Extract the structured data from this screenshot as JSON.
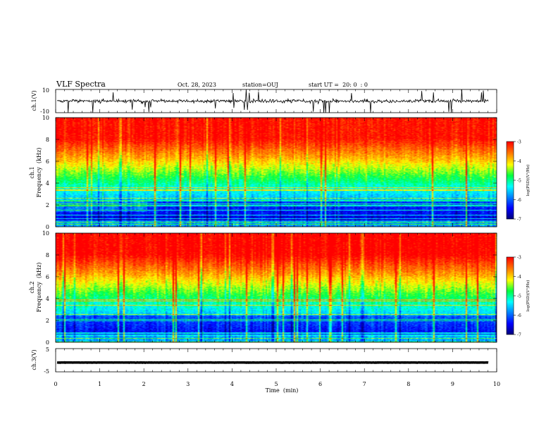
{
  "header": {
    "title": "VLF Spectra",
    "date": "Oct. 28, 2023",
    "station": "station=OUJ",
    "start": "start UT =  20: 0  : 0"
  },
  "colorbar": {
    "ticks": [
      "-3",
      "-4",
      "-5",
      "-6",
      "-7"
    ],
    "label": "log(PSD)(V²/Hz)",
    "range": [
      -7,
      -3
    ],
    "colors": [
      "#00007a",
      "#0000ff",
      "#0080ff",
      "#00ffff",
      "#00ff40",
      "#ffff00",
      "#ff8000",
      "#ff0000"
    ]
  },
  "chart_data": [
    {
      "type": "line",
      "name": "ch.1",
      "ylabel": "ch.1(V)",
      "ylim": [
        -10,
        10
      ],
      "yticks": [
        "10",
        "-10"
      ],
      "xlim": [
        0,
        10
      ],
      "baseline": 0.0,
      "noise_amplitude": 2.5
    },
    {
      "type": "heatmap",
      "name": "ch.1 spectrogram",
      "ylabel_line1": "ch.1",
      "ylabel_line2": "Frequency  (kHz)",
      "xlim": [
        0,
        10
      ],
      "ylim": [
        0,
        10
      ],
      "yticks": [
        "0",
        "2",
        "4",
        "6",
        "8",
        "10"
      ],
      "note": "power decreases from ~-3 above 8 kHz to ~-7 below 2 kHz"
    },
    {
      "type": "heatmap",
      "name": "ch.2 spectrogram",
      "ylabel_line1": "ch.2",
      "ylabel_line2": "Frequency  (kHz)",
      "xlim": [
        0,
        10
      ],
      "ylim": [
        0,
        10
      ],
      "yticks": [
        "0",
        "2",
        "4",
        "6",
        "8",
        "10"
      ]
    },
    {
      "type": "line",
      "name": "ch.3",
      "ylabel": "ch.3(V)",
      "ylim": [
        -5,
        5
      ],
      "yticks": [
        "5",
        "-5"
      ],
      "xlim": [
        0,
        10
      ],
      "baseline": -1.0,
      "noise_amplitude": 0.1
    }
  ],
  "xaxis": {
    "label": "Time  (min)",
    "ticks": [
      "0",
      "1",
      "2",
      "3",
      "4",
      "5",
      "6",
      "7",
      "8",
      "9",
      "10"
    ]
  }
}
